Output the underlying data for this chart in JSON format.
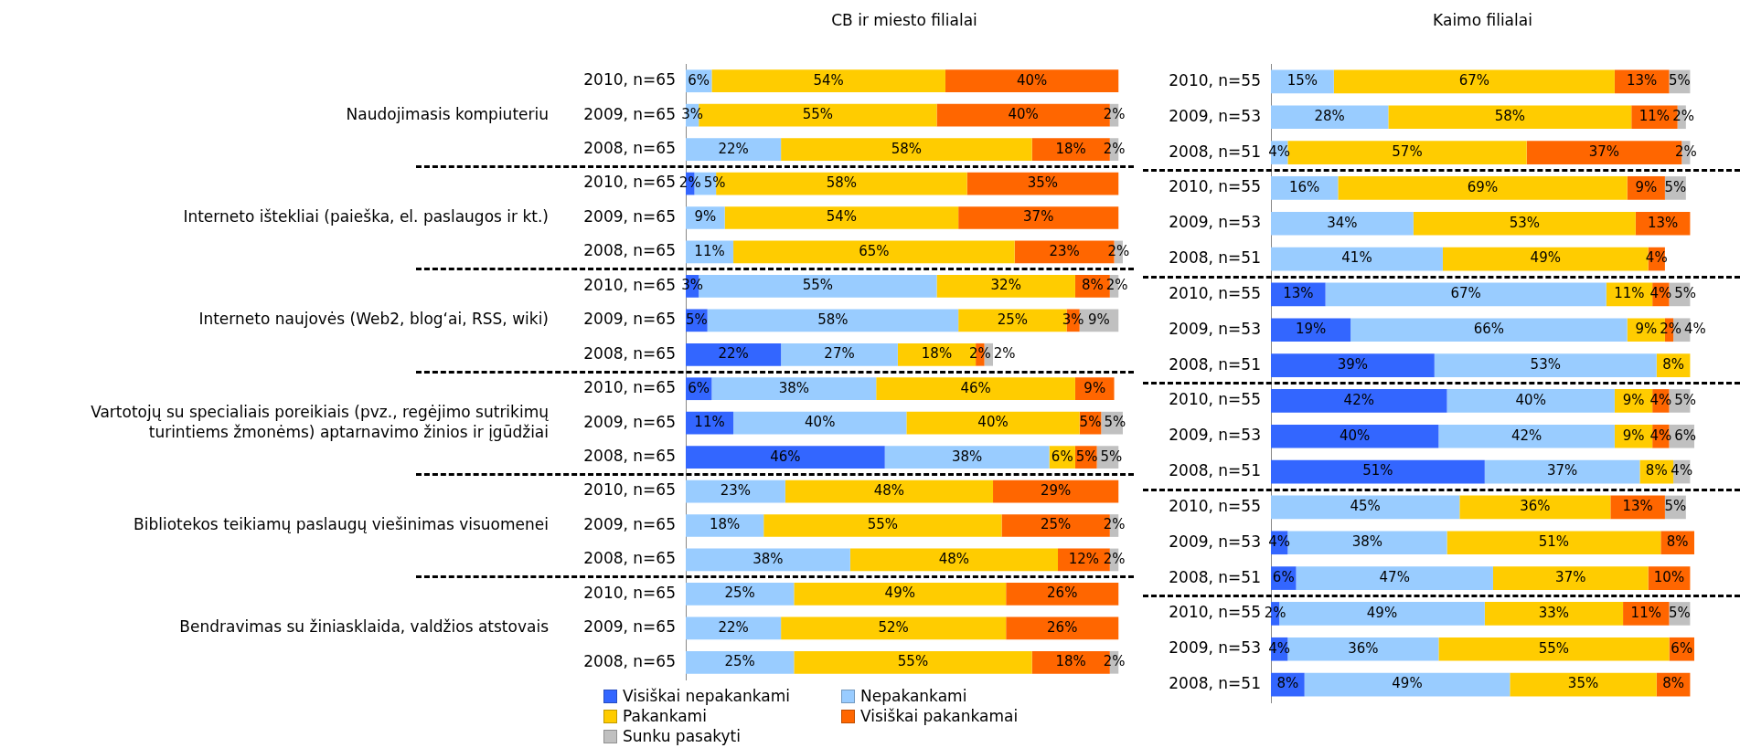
{
  "chart_data": [
    {
      "type": "bar",
      "orientation": "horizontal",
      "stacked": true,
      "title": "CB ir miesto filialai",
      "legend": "bottom",
      "categories": [
        "2010, n=65",
        "2009, n=65",
        "2008, n=65",
        "2010, n=65",
        "2009, n=65",
        "2008, n=65",
        "2010, n=65",
        "2009, n=65",
        "2008, n=65",
        "2010, n=65",
        "2009, n=65",
        "2008, n=65",
        "2010, n=65",
        "2009, n=65",
        "2008, n=65",
        "2010, n=65",
        "2009, n=65",
        "2008, n=65"
      ],
      "annotations": [
        "Naudojimasis kompiuteriu",
        "Interneto ištekliai (paieška, el. paslaugos ir kt.)",
        "Interneto naujovės (Web2, blog‘ai, RSS, wiki)",
        "Vartotojų su specialiais poreikiais (pvz., regėjimo sutrikimų turintiems žmonėms) aptarnavimo žinios ir įgūdžiai",
        "Bibliotekos teikiamų paslaugų viešinimas visuomenei",
        "Bendravimas su žiniasklaida, valdžios atstovais"
      ],
      "series": [
        {
          "name": "Visiškai nepakankami",
          "color": "#3366ff",
          "values": [
            null,
            null,
            null,
            2,
            null,
            null,
            3,
            5,
            22,
            6,
            11,
            46,
            null,
            null,
            null,
            null,
            null,
            null
          ],
          "value_labels": [
            null,
            null,
            null,
            "2%",
            null,
            null,
            "3%",
            "5%",
            "22%",
            "6%",
            "11%",
            "46%",
            null,
            null,
            null,
            null,
            null,
            null
          ]
        },
        {
          "name": "Nepakankami",
          "color": "#99ccff",
          "values": [
            6,
            3,
            22,
            5,
            9,
            11,
            55,
            58,
            27,
            38,
            40,
            38,
            23,
            18,
            38,
            25,
            22,
            25
          ],
          "value_labels": [
            "6%",
            "3%",
            "22%",
            "5%",
            "9%",
            "11%",
            "55%",
            "58%",
            "27%",
            "38%",
            "40%",
            "38%",
            "23%",
            "18%",
            "38%",
            "25%",
            "22%",
            "25%"
          ]
        },
        {
          "name": "Pakankami",
          "color": "#ffcc00",
          "values": [
            54,
            55,
            58,
            58,
            54,
            65,
            32,
            25,
            18,
            46,
            40,
            6,
            48,
            55,
            48,
            49,
            52,
            55
          ],
          "value_labels": [
            "54%",
            "55%",
            "58%",
            "58%",
            "54%",
            "65%",
            "32%",
            "25%",
            "18%",
            "46%",
            "40%",
            "6%",
            "48%",
            "55%",
            "48%",
            "49%",
            "52%",
            "55%"
          ]
        },
        {
          "name": "Visiškai pakankamai",
          "color": "#ff6600",
          "values": [
            40,
            40,
            18,
            35,
            37,
            23,
            8,
            3,
            2,
            9,
            5,
            5,
            29,
            25,
            12,
            26,
            26,
            18
          ],
          "value_labels": [
            "40%",
            "40%",
            "18%",
            "35%",
            "37%",
            "23%",
            "8%",
            "3%",
            "2%",
            "9%",
            "5%",
            "5%",
            "29%",
            "25%",
            "12%",
            "26%",
            "26%",
            "18%"
          ]
        },
        {
          "name": "Sunku pasakyti",
          "color": "#c0c0c0",
          "values": [
            null,
            2,
            2,
            null,
            null,
            2,
            2,
            9,
            2,
            null,
            5,
            5,
            null,
            2,
            2,
            null,
            null,
            2
          ],
          "value_labels": [
            null,
            "2%",
            "2%",
            null,
            null,
            "2%",
            "2%",
            "9%",
            "2%",
            null,
            "5%",
            "5%",
            null,
            "2%",
            "2%",
            null,
            null,
            "2%"
          ]
        }
      ]
    },
    {
      "type": "bar",
      "orientation": "horizontal",
      "stacked": true,
      "title": "Kaimo filialai",
      "categories": [
        "2010, n=55",
        "2009, n=53",
        "2008, n=51",
        "2010, n=55",
        "2009, n=53",
        "2008, n=51",
        "2010, n=55",
        "2009, n=53",
        "2008, n=51",
        "2010, n=55",
        "2009, n=53",
        "2008, n=51",
        "2010, n=55",
        "2009, n=53",
        "2008, n=51",
        "2010, n=55",
        "2009, n=53",
        "2008, n=51"
      ],
      "series": [
        {
          "color": "#3366ff",
          "values": [
            null,
            null,
            null,
            null,
            null,
            null,
            13,
            19,
            39,
            42,
            40,
            51,
            null,
            4,
            6,
            2,
            4,
            8
          ],
          "value_labels": [
            null,
            null,
            null,
            null,
            null,
            null,
            "13%",
            "19%",
            "39%",
            "42%",
            "40%",
            "51%",
            null,
            "4%",
            "6%",
            "2%",
            "4%",
            "8%"
          ]
        },
        {
          "color": "#99ccff",
          "values": [
            15,
            28,
            4,
            16,
            34,
            41,
            67,
            66,
            53,
            40,
            42,
            37,
            45,
            38,
            47,
            49,
            36,
            49
          ],
          "value_labels": [
            "15%",
            "28%",
            "4%",
            "16%",
            "34%",
            "41%",
            "67%",
            "66%",
            "53%",
            "40%",
            "42%",
            "37%",
            "45%",
            "38%",
            "47%",
            "49%",
            "36%",
            "49%"
          ]
        },
        {
          "color": "#ffcc00",
          "values": [
            67,
            58,
            57,
            69,
            53,
            49,
            11,
            9,
            8,
            9,
            9,
            8,
            36,
            51,
            37,
            33,
            55,
            35
          ],
          "value_labels": [
            "67%",
            "58%",
            "57%",
            "69%",
            "53%",
            "49%",
            "11%",
            "9%",
            "8%",
            "9%",
            "9%",
            "8%",
            "36%",
            "51%",
            "37%",
            "33%",
            "55%",
            "35%"
          ]
        },
        {
          "color": "#ff6600",
          "values": [
            13,
            11,
            37,
            9,
            13,
            4,
            4,
            2,
            null,
            4,
            4,
            null,
            13,
            8,
            10,
            11,
            6,
            8
          ],
          "value_labels": [
            "13%",
            "11%",
            "37%",
            "9%",
            "13%",
            "4%",
            "4%",
            "2%",
            null,
            "4%",
            "4%",
            null,
            "13%",
            "8%",
            "10%",
            "11%",
            "6%",
            "8%"
          ]
        },
        {
          "color": "#c0c0c0",
          "values": [
            5,
            2,
            2,
            5,
            null,
            null,
            5,
            4,
            null,
            5,
            6,
            4,
            5,
            null,
            null,
            5,
            null,
            null
          ],
          "value_labels": [
            "5%",
            "2%",
            "2%",
            "5%",
            null,
            null,
            "5%",
            "4%",
            null,
            "5%",
            "6%",
            "4%",
            "5%",
            null,
            null,
            "5%",
            null,
            null
          ]
        }
      ]
    }
  ]
}
